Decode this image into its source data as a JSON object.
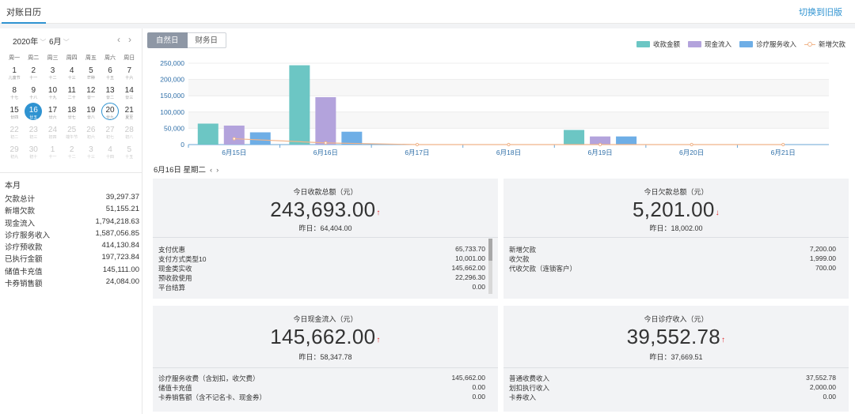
{
  "topbar": {
    "tab": "对账日历",
    "switch": "切换到旧版"
  },
  "calendar": {
    "year": "2020年",
    "month": "6月",
    "nav_prev": "‹",
    "nav_next": "›",
    "weekdays": [
      "周一",
      "周二",
      "周三",
      "周四",
      "周五",
      "周六",
      "周日"
    ],
    "rows": [
      [
        {
          "d": "1",
          "l": "儿童节"
        },
        {
          "d": "2",
          "l": "十一"
        },
        {
          "d": "3",
          "l": "十二"
        },
        {
          "d": "4",
          "l": "十三"
        },
        {
          "d": "5",
          "l": "芒种"
        },
        {
          "d": "6",
          "l": "十五"
        },
        {
          "d": "7",
          "l": "十六"
        }
      ],
      [
        {
          "d": "8",
          "l": "十七"
        },
        {
          "d": "9",
          "l": "十八"
        },
        {
          "d": "10",
          "l": "十九"
        },
        {
          "d": "11",
          "l": "二十"
        },
        {
          "d": "12",
          "l": "廿一"
        },
        {
          "d": "13",
          "l": "廿二"
        },
        {
          "d": "14",
          "l": "廿三"
        }
      ],
      [
        {
          "d": "15",
          "l": "廿四"
        },
        {
          "d": "16",
          "l": "廿五",
          "state": "selected"
        },
        {
          "d": "17",
          "l": "廿六"
        },
        {
          "d": "18",
          "l": "廿七"
        },
        {
          "d": "19",
          "l": "廿八"
        },
        {
          "d": "20",
          "l": "廿九",
          "state": "today"
        },
        {
          "d": "21",
          "l": "夏至"
        }
      ],
      [
        {
          "d": "22",
          "l": "初二",
          "state": "muted"
        },
        {
          "d": "23",
          "l": "初三",
          "state": "muted"
        },
        {
          "d": "24",
          "l": "初四",
          "state": "muted"
        },
        {
          "d": "25",
          "l": "端午节",
          "state": "muted"
        },
        {
          "d": "26",
          "l": "初六",
          "state": "muted"
        },
        {
          "d": "27",
          "l": "初七",
          "state": "muted"
        },
        {
          "d": "28",
          "l": "初八",
          "state": "muted"
        }
      ],
      [
        {
          "d": "29",
          "l": "初九",
          "state": "muted"
        },
        {
          "d": "30",
          "l": "初十",
          "state": "muted"
        },
        {
          "d": "1",
          "l": "十一",
          "state": "muted"
        },
        {
          "d": "2",
          "l": "十二",
          "state": "muted"
        },
        {
          "d": "3",
          "l": "十三",
          "state": "muted"
        },
        {
          "d": "4",
          "l": "十四",
          "state": "muted"
        },
        {
          "d": "5",
          "l": "十五",
          "state": "muted"
        }
      ]
    ]
  },
  "summary": {
    "title": "本月",
    "rows": [
      {
        "label": "欠款总计",
        "value": "39,297.37"
      },
      {
        "label": "新增欠款",
        "value": "51,155.21"
      },
      {
        "label": "现金流入",
        "value": "1,794,218.63"
      },
      {
        "label": "诊疗服务收入",
        "value": "1,587,056.85"
      },
      {
        "label": "诊疗预收款",
        "value": "414,130.84"
      },
      {
        "label": "已执行金额",
        "value": "197,723.84"
      },
      {
        "label": "储值卡充值",
        "value": "145,111.00"
      },
      {
        "label": "卡券销售额",
        "value": "24,084.00"
      }
    ]
  },
  "segment": {
    "natural": "自然日",
    "finance": "财务日"
  },
  "chart_data": {
    "type": "bar",
    "categories": [
      "6月15日",
      "6月16日",
      "6月17日",
      "6月18日",
      "6月19日",
      "6月20日",
      "6月21日"
    ],
    "series": [
      {
        "name": "收款金额",
        "color": "#6cc6c4",
        "values": [
          64404,
          243693,
          0,
          0,
          45000,
          0,
          0
        ]
      },
      {
        "name": "现金流入",
        "color": "#b3a3dc",
        "values": [
          58347.78,
          145662,
          0,
          0,
          25000,
          0,
          0
        ]
      },
      {
        "name": "诊疗服务收入",
        "color": "#6eaee6",
        "values": [
          37669.51,
          39552.78,
          0,
          0,
          25000,
          0,
          0
        ]
      },
      {
        "name": "新增欠款",
        "color": "#f0b48a",
        "values": [
          18002,
          5201,
          0,
          0,
          0,
          0,
          0
        ],
        "kind": "line"
      }
    ],
    "ylim": [
      0,
      250000
    ],
    "yticks": [
      "0",
      "50,000",
      "100,000",
      "150,000",
      "200,000",
      "250,000"
    ],
    "grid": true,
    "legend": "top-right"
  },
  "date_nav": {
    "label": "6月16日 星期二",
    "prev": "‹",
    "next": "›"
  },
  "cards": {
    "income": {
      "title": "今日收款总额（元）",
      "value": "243,693.00",
      "trend": "↑",
      "yesterday": "昨日：64,404.00",
      "details": [
        {
          "label": "支付优惠",
          "value": "65,733.70"
        },
        {
          "label": "支付方式类型10",
          "value": "10,001.00"
        },
        {
          "label": "现金类实收",
          "value": "145,662.00"
        },
        {
          "label": "预收款使用",
          "value": "22,296.30"
        },
        {
          "label": "平台结算",
          "value": "0.00"
        }
      ]
    },
    "arrears": {
      "title": "今日欠款总额（元）",
      "value": "5,201.00",
      "trend": "↓",
      "yesterday": "昨日：18,002.00",
      "details": [
        {
          "label": "新增欠款",
          "value": "7,200.00"
        },
        {
          "label": "收欠款",
          "value": "1,999.00"
        },
        {
          "label": "代收欠款（连锁客户）",
          "value": "700.00"
        }
      ]
    },
    "cash": {
      "title": "今日现金流入（元）",
      "value": "145,662.00",
      "trend": "↑",
      "yesterday": "昨日：58,347.78",
      "details": [
        {
          "label": "诊疗服务收费（含划扣，收欠费）",
          "value": "145,662.00"
        },
        {
          "label": "储值卡充值",
          "value": "0.00"
        },
        {
          "label": "卡券销售额（含不记名卡、现金券）",
          "value": "0.00"
        }
      ]
    },
    "treatment": {
      "title": "今日诊疗收入（元）",
      "value": "39,552.78",
      "trend": "↑",
      "yesterday": "昨日：37,669.51",
      "details": [
        {
          "label": "普通收费收入",
          "value": "37,552.78"
        },
        {
          "label": "划扣执行收入",
          "value": "2,000.00"
        },
        {
          "label": "卡券收入",
          "value": "0.00"
        }
      ]
    }
  }
}
